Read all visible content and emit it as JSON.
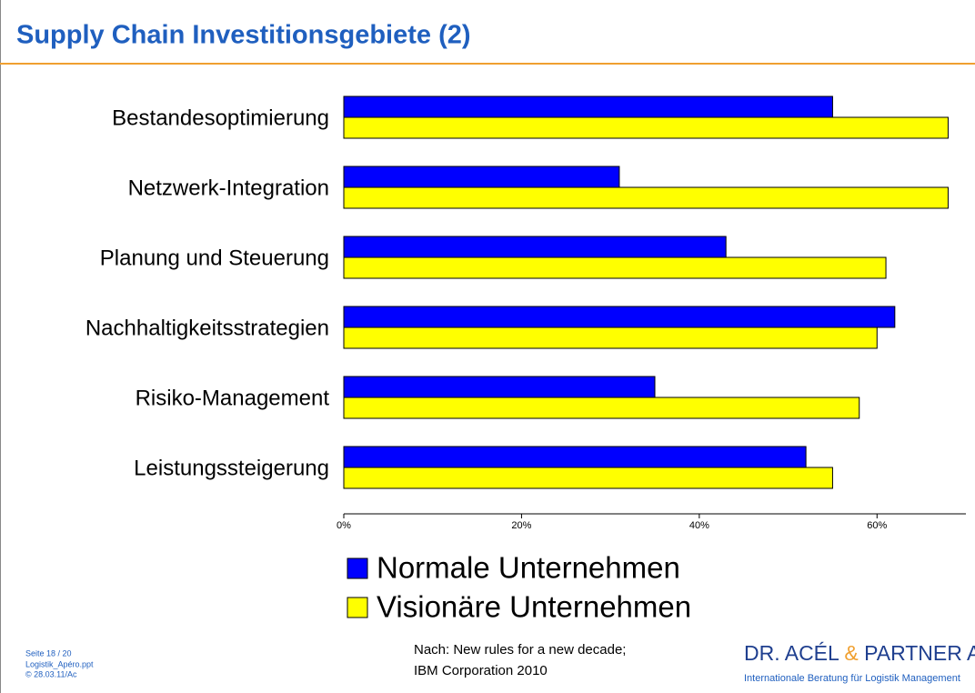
{
  "header": {
    "title": "Supply Chain Investitionsgebiete (2)"
  },
  "chart_data": {
    "type": "hbar",
    "categories": [
      "Bestandesoptimierung",
      "Netzwerk-Integration",
      "Planung und Steuerung",
      "Nachhaltigkeitsstrategien",
      "Risiko-Management",
      "Leistungssteigerung"
    ],
    "series": [
      {
        "name": "Normale Unternehmen",
        "color": "#0000ff",
        "values": [
          55,
          31,
          43,
          62,
          35,
          52
        ]
      },
      {
        "name": "Visionäre Unternehmen",
        "color": "#ffff00",
        "values": [
          68,
          68,
          61,
          60,
          58,
          55
        ]
      }
    ],
    "xlim": [
      0,
      70
    ],
    "xticks": [
      {
        "value": 0,
        "label": "0%"
      },
      {
        "value": 20,
        "label": "20%"
      },
      {
        "value": 40,
        "label": "40%"
      },
      {
        "value": 60,
        "label": "60%"
      }
    ],
    "legend": "bottom"
  },
  "footer": {
    "page": "Seite  18 / 20",
    "file": "Logistik_Apéro.ppt",
    "date": "©  28.03.11/Ac",
    "source": [
      "Nach: New rules for a new decade;",
      "IBM  Corporation 2010"
    ],
    "logo": {
      "part1": "DR. ACÉL",
      "amp": "&",
      "part2": "PARTNER AG",
      "tagline": "Internationale Beratung für Logistik Management"
    }
  }
}
